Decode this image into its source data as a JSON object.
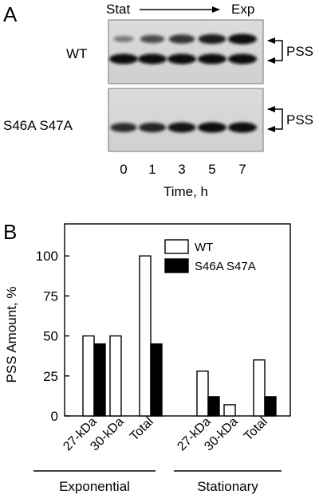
{
  "panel_a": {
    "letter": "A",
    "direction_start": "Stat",
    "direction_end": "Exp",
    "blots": [
      {
        "lane_label": "WT",
        "band_label": "PSS",
        "upper_band_intensity": [
          0.25,
          0.6,
          0.75,
          0.9,
          1.0
        ],
        "lower_band_intensity": [
          1.0,
          1.0,
          1.0,
          1.0,
          1.0
        ]
      },
      {
        "lane_label": "S46A S47A",
        "band_label": "PSS",
        "upper_band_intensity": [
          0,
          0,
          0,
          0,
          0
        ],
        "lower_band_intensity": [
          0.8,
          0.85,
          0.95,
          1.0,
          1.0
        ]
      }
    ],
    "time_points": [
      "0",
      "1",
      "3",
      "5",
      "7"
    ],
    "time_axis_title": "Time, h"
  },
  "panel_b": {
    "letter": "B"
  },
  "chart_data": {
    "type": "bar",
    "title": "",
    "xlabel": "",
    "ylabel": "PSS Amount, %",
    "ylim": [
      0,
      120
    ],
    "yticks": [
      0,
      25,
      50,
      75,
      100
    ],
    "grid": false,
    "legend_position": "top-right",
    "groups": [
      {
        "label": "Exponential",
        "categories": [
          "27-kDa",
          "30-kDa",
          "Total"
        ]
      },
      {
        "label": "Stationary",
        "categories": [
          "27-kDa",
          "30-kDa",
          "Total"
        ]
      }
    ],
    "categories": [
      "27-kDa",
      "30-kDa",
      "Total",
      "27-kDa",
      "30-kDa",
      "Total"
    ],
    "series": [
      {
        "name": "WT",
        "color": "#ffffff",
        "values": [
          50,
          50,
          100,
          28,
          7,
          35
        ]
      },
      {
        "name": "S46A S47A",
        "color": "#000000",
        "values": [
          45,
          0,
          45,
          12,
          0,
          12
        ]
      }
    ]
  }
}
